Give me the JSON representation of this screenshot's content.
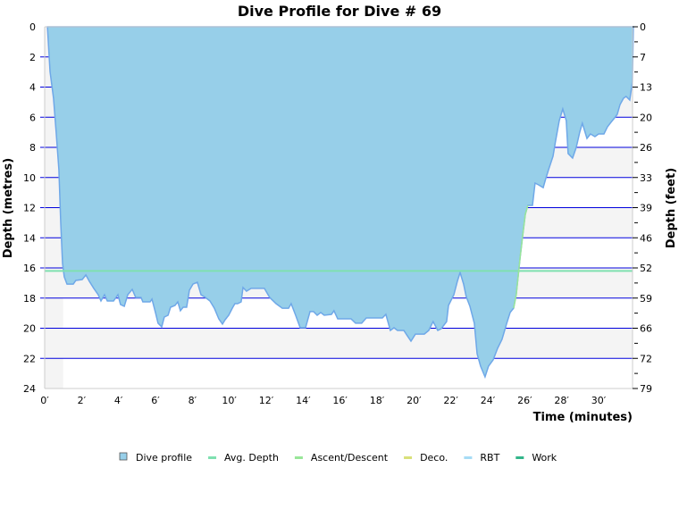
{
  "chart_data": {
    "type": "area",
    "title": "Dive Profile for Dive # 69",
    "xlabel": "Time (minutes)",
    "ylabel": "Depth (metres)",
    "y2label": "Depth (feet)",
    "xlim": [
      0,
      31.9
    ],
    "ylim": [
      24,
      0
    ],
    "x_ticks": [
      "0′",
      "2′",
      "4′",
      "6′",
      "8′",
      "10′",
      "12′",
      "14′",
      "16′",
      "18′",
      "20′",
      "22′",
      "24′",
      "26′",
      "28′",
      "30′"
    ],
    "y_ticks": [
      "0",
      "2",
      "4",
      "6",
      "8",
      "10",
      "12",
      "14",
      "16",
      "18",
      "20",
      "22",
      "24"
    ],
    "y2_ticks": [
      "0",
      "7",
      "13",
      "20",
      "26",
      "33",
      "39",
      "46",
      "52",
      "59",
      "66",
      "72",
      "79"
    ],
    "grid": true,
    "legend_position": "bottom",
    "avg_depth": 16.2,
    "colors": {
      "profile": "#97cfe9",
      "profile_line": "#6fa8e8",
      "avg": "#7fe0b0",
      "ascent": "#99e699",
      "deco": "#d9e07a",
      "rbt": "#a6dcf5",
      "work": "#33b58a",
      "grid": "#0000dd",
      "band": "#f4f4f4"
    },
    "legend": [
      {
        "label": "Dive profile",
        "color": "#97cfe9",
        "kind": "box"
      },
      {
        "label": "Avg. Depth",
        "color": "#7fe0b0",
        "kind": "line"
      },
      {
        "label": "Ascent/Descent",
        "color": "#99e699",
        "kind": "line"
      },
      {
        "label": "Deco.",
        "color": "#d9e07a",
        "kind": "line"
      },
      {
        "label": "RBT",
        "color": "#a6dcf5",
        "kind": "line"
      },
      {
        "label": "Work",
        "color": "#33b58a",
        "kind": "line"
      }
    ],
    "series": [
      {
        "points": [
          [
            0.15,
            0
          ],
          [
            0.29,
            2.96
          ],
          [
            0.48,
            4.74
          ],
          [
            0.63,
            7.11
          ],
          [
            0.77,
            9.48
          ],
          [
            0.87,
            13.04
          ],
          [
            0.97,
            15.7
          ],
          [
            1.06,
            16.59
          ],
          [
            1.21,
            17.07
          ],
          [
            1.55,
            17.07
          ],
          [
            1.69,
            16.83
          ],
          [
            2.03,
            16.77
          ],
          [
            2.23,
            16.47
          ],
          [
            2.42,
            16.89
          ],
          [
            2.66,
            17.36
          ],
          [
            2.9,
            17.78
          ],
          [
            3.05,
            18.19
          ],
          [
            3.24,
            17.78
          ],
          [
            3.39,
            18.19
          ],
          [
            3.73,
            18.19
          ],
          [
            3.97,
            17.78
          ],
          [
            4.11,
            18.43
          ],
          [
            4.31,
            18.55
          ],
          [
            4.5,
            17.78
          ],
          [
            4.74,
            17.42
          ],
          [
            4.93,
            17.96
          ],
          [
            5.22,
            17.96
          ],
          [
            5.32,
            18.25
          ],
          [
            5.71,
            18.25
          ],
          [
            5.81,
            18.07
          ],
          [
            6.0,
            18.96
          ],
          [
            6.14,
            19.67
          ],
          [
            6.34,
            19.91
          ],
          [
            6.48,
            19.26
          ],
          [
            6.68,
            19.14
          ],
          [
            6.82,
            18.61
          ],
          [
            7.06,
            18.49
          ],
          [
            7.21,
            18.25
          ],
          [
            7.35,
            18.84
          ],
          [
            7.5,
            18.61
          ],
          [
            7.69,
            18.61
          ],
          [
            7.84,
            17.48
          ],
          [
            8.03,
            17.07
          ],
          [
            8.27,
            16.95
          ],
          [
            8.47,
            17.78
          ],
          [
            8.71,
            17.96
          ],
          [
            8.95,
            18.19
          ],
          [
            9.19,
            18.67
          ],
          [
            9.43,
            19.38
          ],
          [
            9.63,
            19.73
          ],
          [
            9.77,
            19.44
          ],
          [
            9.97,
            19.14
          ],
          [
            10.16,
            18.67
          ],
          [
            10.3,
            18.37
          ],
          [
            10.45,
            18.37
          ],
          [
            10.64,
            18.25
          ],
          [
            10.74,
            17.3
          ],
          [
            10.93,
            17.54
          ],
          [
            11.18,
            17.36
          ],
          [
            11.9,
            17.36
          ],
          [
            12.19,
            17.96
          ],
          [
            12.53,
            18.37
          ],
          [
            12.87,
            18.67
          ],
          [
            13.21,
            18.67
          ],
          [
            13.35,
            18.37
          ],
          [
            13.59,
            19.14
          ],
          [
            13.84,
            19.97
          ],
          [
            14.13,
            19.97
          ],
          [
            14.37,
            18.9
          ],
          [
            14.56,
            18.9
          ],
          [
            14.76,
            19.14
          ],
          [
            14.95,
            18.96
          ],
          [
            15.14,
            19.14
          ],
          [
            15.53,
            19.08
          ],
          [
            15.67,
            18.84
          ],
          [
            15.87,
            19.38
          ],
          [
            16.59,
            19.38
          ],
          [
            16.84,
            19.67
          ],
          [
            17.17,
            19.67
          ],
          [
            17.42,
            19.32
          ],
          [
            18.29,
            19.32
          ],
          [
            18.48,
            19.08
          ],
          [
            18.72,
            20.15
          ],
          [
            18.92,
            19.97
          ],
          [
            19.11,
            20.15
          ],
          [
            19.45,
            20.15
          ],
          [
            19.64,
            20.5
          ],
          [
            19.84,
            20.86
          ],
          [
            20.08,
            20.39
          ],
          [
            20.56,
            20.39
          ],
          [
            20.8,
            20.15
          ],
          [
            21.04,
            19.56
          ],
          [
            21.29,
            20.15
          ],
          [
            21.48,
            20.03
          ],
          [
            21.77,
            19.56
          ],
          [
            21.87,
            18.49
          ],
          [
            22.16,
            17.78
          ],
          [
            22.35,
            16.89
          ],
          [
            22.5,
            16.3
          ],
          [
            22.69,
            17.07
          ],
          [
            22.83,
            17.9
          ],
          [
            23.03,
            18.55
          ],
          [
            23.27,
            19.67
          ],
          [
            23.42,
            21.69
          ],
          [
            23.61,
            22.52
          ],
          [
            23.85,
            23.23
          ],
          [
            24.04,
            22.52
          ],
          [
            24.29,
            22.1
          ],
          [
            24.53,
            21.33
          ],
          [
            24.77,
            20.74
          ],
          [
            25.01,
            19.73
          ],
          [
            25.21,
            18.96
          ],
          [
            25.4,
            18.67
          ],
          [
            25.54,
            17.78
          ],
          [
            25.64,
            16.59
          ],
          [
            25.74,
            15.41
          ],
          [
            25.88,
            13.93
          ],
          [
            26.03,
            12.44
          ],
          [
            26.17,
            11.85
          ],
          [
            26.42,
            11.85
          ],
          [
            26.56,
            10.37
          ],
          [
            26.75,
            10.49
          ],
          [
            27.0,
            10.67
          ],
          [
            27.14,
            10.07
          ],
          [
            27.29,
            9.48
          ],
          [
            27.53,
            8.59
          ],
          [
            27.67,
            7.59
          ],
          [
            27.87,
            6.22
          ],
          [
            28.06,
            5.45
          ],
          [
            28.25,
            6.22
          ],
          [
            28.35,
            8.41
          ],
          [
            28.59,
            8.71
          ],
          [
            28.79,
            8.0
          ],
          [
            28.98,
            6.99
          ],
          [
            29.12,
            6.4
          ],
          [
            29.37,
            7.41
          ],
          [
            29.56,
            7.11
          ],
          [
            29.8,
            7.29
          ],
          [
            30.0,
            7.11
          ],
          [
            30.29,
            7.11
          ],
          [
            30.48,
            6.64
          ],
          [
            30.67,
            6.34
          ],
          [
            30.87,
            6.04
          ],
          [
            31.01,
            5.81
          ],
          [
            31.16,
            5.16
          ],
          [
            31.35,
            4.74
          ],
          [
            31.49,
            4.62
          ],
          [
            31.69,
            4.86
          ],
          [
            31.83,
            3.67
          ],
          [
            31.88,
            0
          ]
        ]
      }
    ]
  }
}
